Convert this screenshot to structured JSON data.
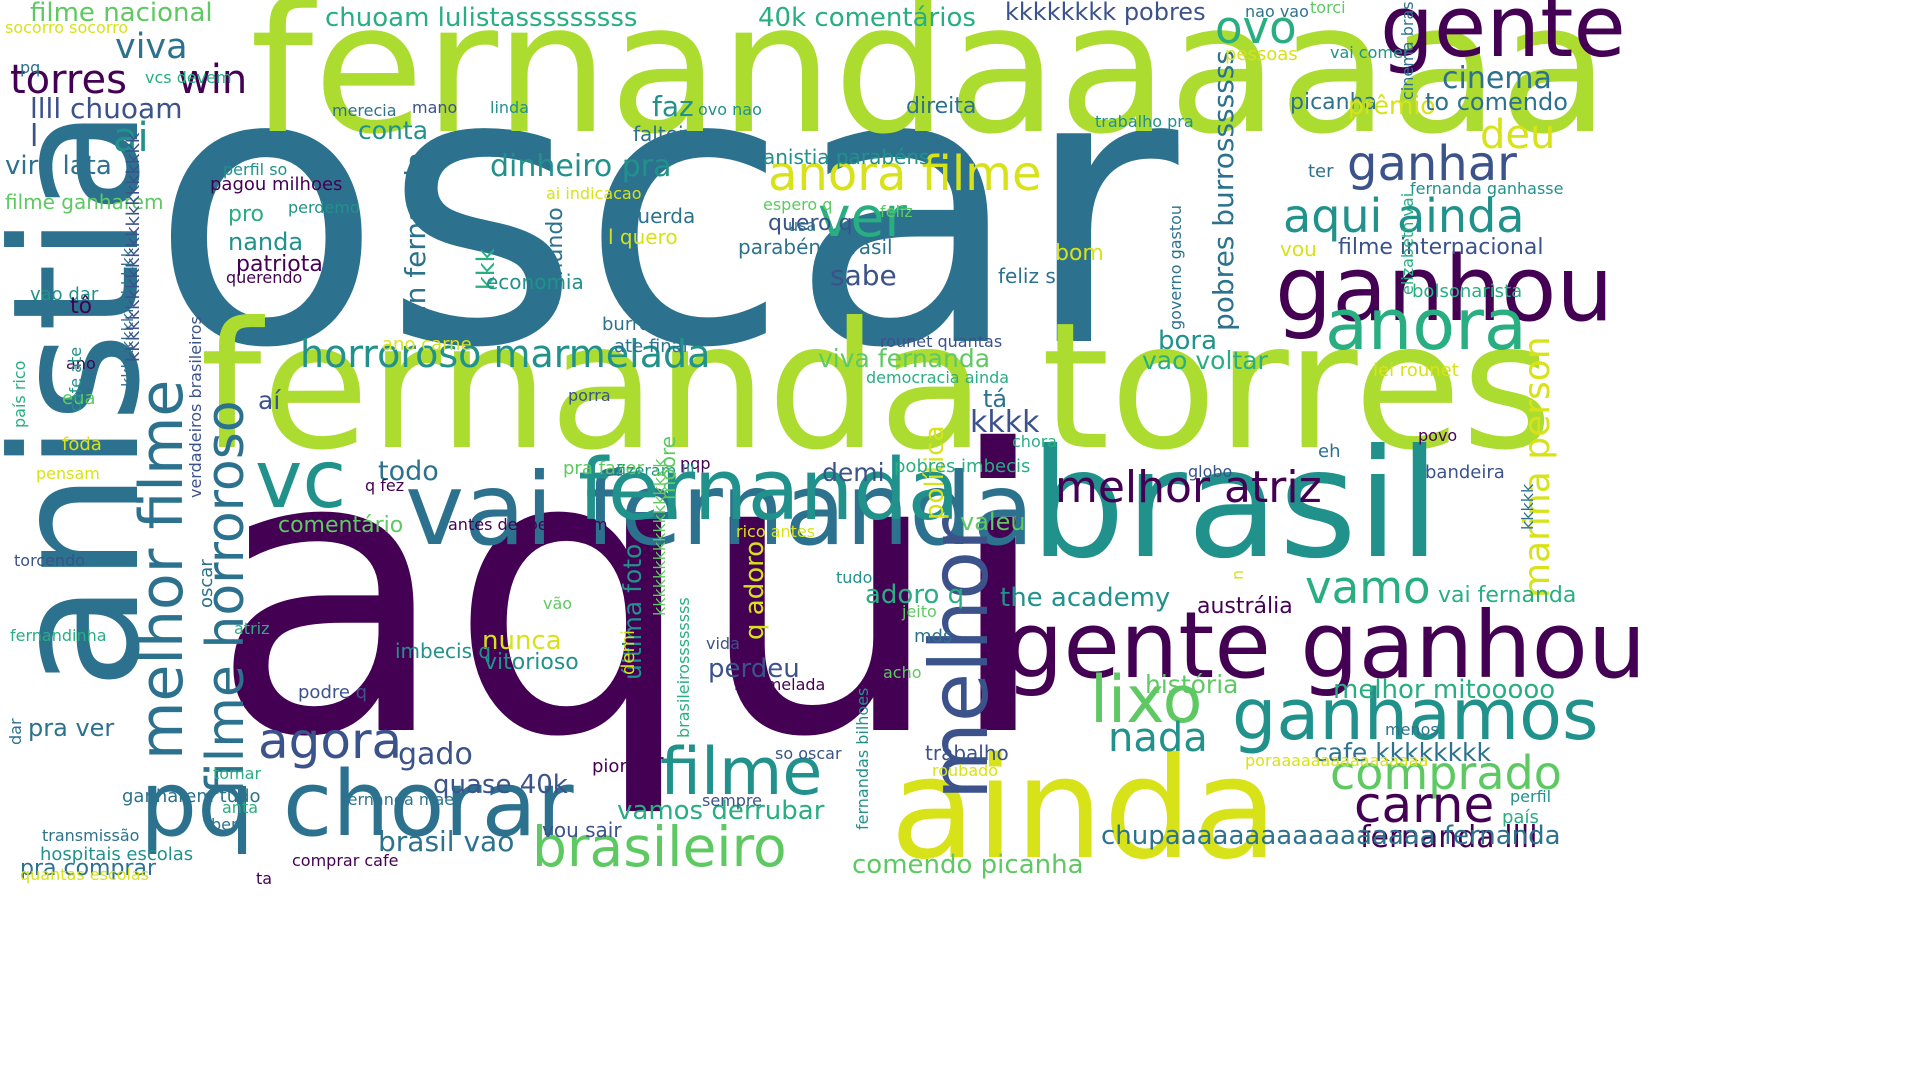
{
  "word_cloud": {
    "background": "#ffffff",
    "palette": [
      "#440154",
      "#3b528b",
      "#2c728e",
      "#21918c",
      "#28ae80",
      "#5ec962",
      "#addc30",
      "#d8e219"
    ],
    "words": [
      {
        "text": "oscar",
        "color": "#2c728e"
      },
      {
        "text": "aqui",
        "color": "#440154"
      },
      {
        "text": "fernandaaaaaa",
        "color": "#addc30"
      },
      {
        "text": "fernanda torres",
        "color": "#addc30"
      },
      {
        "text": "anistia",
        "color": "#2c728e"
      },
      {
        "text": "brasil",
        "color": "#21918c"
      },
      {
        "text": "ainda",
        "color": "#d8e219"
      },
      {
        "text": "gente",
        "color": "#440154"
      },
      {
        "text": "ganhou",
        "color": "#440154"
      },
      {
        "text": "gente ganhou",
        "color": "#440154"
      },
      {
        "text": "pq chorar",
        "color": "#2c728e"
      },
      {
        "text": "vai fernanda",
        "color": "#2c728e"
      },
      {
        "text": "fernanda",
        "color": "#21918c"
      },
      {
        "text": "brasileiro",
        "color": "#5ec962"
      },
      {
        "text": "ganhamos",
        "color": "#21918c"
      },
      {
        "text": "anora",
        "color": "#28ae80"
      },
      {
        "text": "vc",
        "color": "#21918c"
      },
      {
        "text": "filme",
        "color": "#21918c"
      },
      {
        "text": "melhor",
        "color": "#3b528b"
      },
      {
        "text": "lixo",
        "color": "#5ec962"
      },
      {
        "text": "melhor filme",
        "color": "#2c728e"
      },
      {
        "text": "filme horroroso",
        "color": "#2c728e"
      },
      {
        "text": "melhor atriz",
        "color": "#440154"
      },
      {
        "text": "aqui ainda",
        "color": "#21918c"
      },
      {
        "text": "anora filme",
        "color": "#d8e219"
      },
      {
        "text": "ver",
        "color": "#28ae80"
      },
      {
        "text": "ganhar",
        "color": "#3b528b"
      },
      {
        "text": "agora",
        "color": "#3b528b"
      },
      {
        "text": "horroroso marmelada",
        "color": "#21918c"
      },
      {
        "text": "comprado",
        "color": "#5ec962"
      },
      {
        "text": "carne",
        "color": "#440154"
      },
      {
        "text": "marina person",
        "color": "#d8e219"
      },
      {
        "text": "vamo",
        "color": "#28ae80"
      },
      {
        "text": "nada",
        "color": "#21918c"
      },
      {
        "text": "torres",
        "color": "#440154"
      },
      {
        "text": "win",
        "color": "#440154"
      },
      {
        "text": "viva",
        "color": "#2c728e"
      },
      {
        "text": "ovo",
        "color": "#28ae80"
      },
      {
        "text": "cinema",
        "color": "#2c728e"
      },
      {
        "text": "deu",
        "color": "#d8e219"
      },
      {
        "text": "ai",
        "color": "#21918c"
      },
      {
        "text": "llll chuoam",
        "color": "#3b528b"
      },
      {
        "text": "l",
        "color": "#3b528b"
      },
      {
        "text": "vira lata",
        "color": "#2c728e"
      },
      {
        "text": "filme nacional",
        "color": "#5ec962"
      },
      {
        "text": "chuoam lulistasssssssss",
        "color": "#28ae80"
      },
      {
        "text": "40k comentários",
        "color": "#28ae80"
      },
      {
        "text": "kkkkkkkk pobres",
        "color": "#3b528b"
      },
      {
        "text": "picanha",
        "color": "#2c728e"
      },
      {
        "text": "faz",
        "color": "#21918c"
      },
      {
        "text": "conta",
        "color": "#21918c"
      },
      {
        "text": "dinheiro pra",
        "color": "#21918c"
      },
      {
        "text": "prêmio",
        "color": "#d8e219"
      },
      {
        "text": "to comendo",
        "color": "#2c728e"
      },
      {
        "text": "win fernanda",
        "color": "#2c728e"
      },
      {
        "text": "mundo",
        "color": "#2c728e"
      },
      {
        "text": "pobres burrosssssss",
        "color": "#2c728e"
      },
      {
        "text": "sabe",
        "color": "#3b528b"
      },
      {
        "text": "vao voltar",
        "color": "#28ae80"
      },
      {
        "text": "bora",
        "color": "#21918c"
      },
      {
        "text": "viva fernanda",
        "color": "#5ec962"
      },
      {
        "text": "kkkk",
        "color": "#3b528b"
      },
      {
        "text": "todo",
        "color": "#2c728e"
      },
      {
        "text": "demi",
        "color": "#3b528b"
      },
      {
        "text": "valeu",
        "color": "#5ec962"
      },
      {
        "text": "adoro q",
        "color": "#28ae80"
      },
      {
        "text": "the academy",
        "color": "#21918c"
      },
      {
        "text": "austrália",
        "color": "#440154"
      },
      {
        "text": "vai fernanda",
        "color": "#28ae80"
      },
      {
        "text": "nunca",
        "color": "#d8e219"
      },
      {
        "text": "vitorioso",
        "color": "#21918c"
      },
      {
        "text": "perdeu",
        "color": "#3b528b"
      },
      {
        "text": "história",
        "color": "#5ec962"
      },
      {
        "text": "melhor mitooooo",
        "color": "#28ae80"
      },
      {
        "text": "cafe kkkkkkkk",
        "color": "#2c728e"
      },
      {
        "text": "quase 40k",
        "color": "#3b528b"
      },
      {
        "text": "gado",
        "color": "#3b528b"
      },
      {
        "text": "vamos derrubar",
        "color": "#28ae80"
      },
      {
        "text": "brasil vao",
        "color": "#2c728e"
      },
      {
        "text": "pra ver",
        "color": "#2c728e"
      },
      {
        "text": "fernanda llll",
        "color": "#440154"
      },
      {
        "text": "chupaaaaaaaaaaaaaaaaa fernanda",
        "color": "#2c728e"
      },
      {
        "text": "comendo picanha",
        "color": "#5ec962"
      },
      {
        "text": "pra comprar",
        "color": "#2c728e"
      },
      {
        "text": "comentário",
        "color": "#5ec962"
      },
      {
        "text": "última foto",
        "color": "#21918c"
      },
      {
        "text": "q adoro",
        "color": "#d8e219"
      },
      {
        "text": "política",
        "color": "#d8e219"
      },
      {
        "text": "aí",
        "color": "#3b528b"
      },
      {
        "text": "tá",
        "color": "#2c728e"
      },
      {
        "text": "bom",
        "color": "#d8e219"
      },
      {
        "text": "kkk",
        "color": "#28ae80"
      },
      {
        "text": "pro",
        "color": "#28ae80"
      },
      {
        "text": "nanda",
        "color": "#21918c"
      },
      {
        "text": "patriota",
        "color": "#440154"
      },
      {
        "text": "economia",
        "color": "#21918c"
      },
      {
        "text": "feliz sim",
        "color": "#2c728e"
      },
      {
        "text": "direita",
        "color": "#2c728e"
      },
      {
        "text": "faltei",
        "color": "#2c728e"
      },
      {
        "text": "anistia parabéns",
        "color": "#21918c"
      },
      {
        "text": "quero q",
        "color": "#3b528b"
      },
      {
        "text": "parabéns brasil",
        "color": "#2c728e"
      },
      {
        "text": "filme internacional",
        "color": "#3b528b"
      },
      {
        "text": "vou",
        "color": "#d8e219"
      },
      {
        "text": "ter",
        "color": "#2c728e"
      },
      {
        "text": "fernanda ganhasse",
        "color": "#21918c"
      },
      {
        "text": "bolsonarista",
        "color": "#28ae80"
      },
      {
        "text": "esquerda",
        "color": "#2c728e"
      },
      {
        "text": "l quero",
        "color": "#d8e219"
      },
      {
        "text": "espero q",
        "color": "#5ec962"
      },
      {
        "text": "usa",
        "color": "#2c728e"
      },
      {
        "text": "ai indicacao",
        "color": "#d8e219"
      },
      {
        "text": "perfil so",
        "color": "#21918c"
      },
      {
        "text": "pagou milhoes",
        "color": "#440154"
      },
      {
        "text": "querendo",
        "color": "#440154"
      },
      {
        "text": "perdemo",
        "color": "#21918c"
      },
      {
        "text": "feliz",
        "color": "#5ec962"
      },
      {
        "text": "filme ganharem",
        "color": "#5ec962"
      },
      {
        "text": "vao dar",
        "color": "#21918c"
      },
      {
        "text": "tô",
        "color": "#440154"
      },
      {
        "text": "merecia",
        "color": "#2c728e"
      },
      {
        "text": "mano",
        "color": "#3b528b"
      },
      {
        "text": "linda",
        "color": "#21918c"
      },
      {
        "text": "ovo nao",
        "color": "#21918c"
      },
      {
        "text": "trabalho pra",
        "color": "#21918c"
      },
      {
        "text": "pessoas",
        "color": "#d8e219"
      },
      {
        "text": "vai comer",
        "color": "#21918c"
      },
      {
        "text": "nao vao",
        "color": "#2c728e"
      },
      {
        "text": "torci",
        "color": "#5ec962"
      },
      {
        "text": "cinema brasileiro",
        "color": "#2c728e"
      },
      {
        "text": "socorro socorro",
        "color": "#d8e219"
      },
      {
        "text": "pq",
        "color": "#2c728e"
      },
      {
        "text": "vcs devem",
        "color": "#28ae80"
      },
      {
        "text": "burros governo",
        "color": "#2c728e"
      },
      {
        "text": "ate final",
        "color": "#2c728e"
      },
      {
        "text": "ano carne",
        "color": "#d8e219"
      },
      {
        "text": "rounet quantas",
        "color": "#3b528b"
      },
      {
        "text": "democracia ainda",
        "color": "#28ae80"
      },
      {
        "text": "lei rounet",
        "color": "#d8e219"
      },
      {
        "text": "povo",
        "color": "#440154"
      },
      {
        "text": "porra",
        "color": "#3b528b"
      },
      {
        "text": "eh",
        "color": "#2c728e"
      },
      {
        "text": "chora",
        "color": "#28ae80"
      },
      {
        "text": "bandeira",
        "color": "#3b528b"
      },
      {
        "text": "globo",
        "color": "#3b528b"
      },
      {
        "text": "pqp",
        "color": "#440154"
      },
      {
        "text": "pobres imbecis",
        "color": "#28ae80"
      },
      {
        "text": "pra fazer",
        "color": "#5ec962"
      },
      {
        "text": "q fez",
        "color": "#440154"
      },
      {
        "text": "fizeram lll",
        "color": "#21918c"
      },
      {
        "text": "antes denpensarem",
        "color": "#440154"
      },
      {
        "text": "rico antes",
        "color": "#d8e219"
      },
      {
        "text": "tudo",
        "color": "#21918c"
      },
      {
        "text": "jeito",
        "color": "#5ec962"
      },
      {
        "text": "mds",
        "color": "#2c728e"
      },
      {
        "text": "vão",
        "color": "#5ec962"
      },
      {
        "text": "atriz",
        "color": "#28ae80"
      },
      {
        "text": "imbecis q",
        "color": "#21918c"
      },
      {
        "text": "vida",
        "color": "#3b528b"
      },
      {
        "text": "marmelada",
        "color": "#440154"
      },
      {
        "text": "acho",
        "color": "#5ec962"
      },
      {
        "text": "podre q",
        "color": "#3b528b"
      },
      {
        "text": "pior",
        "color": "#440154"
      },
      {
        "text": "trabalho",
        "color": "#3b528b"
      },
      {
        "text": "roubado",
        "color": "#d8e219"
      },
      {
        "text": "so oscar",
        "color": "#3b528b"
      },
      {
        "text": "poraaaaaaaaaaaaaaaa",
        "color": "#d8e219"
      },
      {
        "text": "menos",
        "color": "#2c728e"
      },
      {
        "text": "tomar",
        "color": "#28ae80"
      },
      {
        "text": "ganharem tudo",
        "color": "#2c728e"
      },
      {
        "text": "anta",
        "color": "#28ae80"
      },
      {
        "text": "fernanda mae",
        "color": "#2c728e"
      },
      {
        "text": "bem",
        "color": "#2c728e"
      },
      {
        "text": "transmissão",
        "color": "#2c728e"
      },
      {
        "text": "hospitais escolas",
        "color": "#21918c"
      },
      {
        "text": "quantas escolas",
        "color": "#d8e219"
      },
      {
        "text": "fernandinha",
        "color": "#28ae80"
      },
      {
        "text": "torcendo",
        "color": "#3b528b"
      },
      {
        "text": "pensam",
        "color": "#d8e219"
      },
      {
        "text": "foda",
        "color": "#d8e219"
      },
      {
        "text": "eua",
        "color": "#5ec962"
      },
      {
        "text": "ano",
        "color": "#440154"
      },
      {
        "text": "vou sair",
        "color": "#3b528b"
      },
      {
        "text": "sempre",
        "color": "#3b528b"
      },
      {
        "text": "comprar cafe",
        "color": "#440154"
      },
      {
        "text": "ta",
        "color": "#440154"
      },
      {
        "text": "perfil",
        "color": "#21918c"
      },
      {
        "text": "país",
        "color": "#28ae80"
      },
      {
        "text": "cafe ate",
        "color": "#21918c"
      },
      {
        "text": "país rico",
        "color": "#28ae80"
      },
      {
        "text": "dar",
        "color": "#2c728e"
      },
      {
        "text": "kkkkkkkkkkkkkkk",
        "color": "#2c728e"
      },
      {
        "text": "kkkkkkkkkkkkkkkkkkkkkk",
        "color": "#3b528b"
      },
      {
        "text": "oscar",
        "color": "#2c728e"
      },
      {
        "text": "verdadeiros brasileiros",
        "color": "#3b528b"
      },
      {
        "text": "moore",
        "color": "#5ec962"
      },
      {
        "text": "demi",
        "color": "#d8e219"
      },
      {
        "text": "q fizeram",
        "color": "#440154"
      },
      {
        "text": "kkkkkkkkkkkkkkkkk",
        "color": "#5ec962"
      },
      {
        "text": "brasileirossssssss",
        "color": "#28ae80"
      },
      {
        "text": "n",
        "color": "#d8e219"
      },
      {
        "text": "fernandas bilhoes",
        "color": "#21918c"
      },
      {
        "text": "governo gastou",
        "color": "#2c728e"
      },
      {
        "text": "elizabeth vai",
        "color": "#28ae80"
      },
      {
        "text": "kkkkk",
        "color": "#2c728e"
      }
    ]
  }
}
